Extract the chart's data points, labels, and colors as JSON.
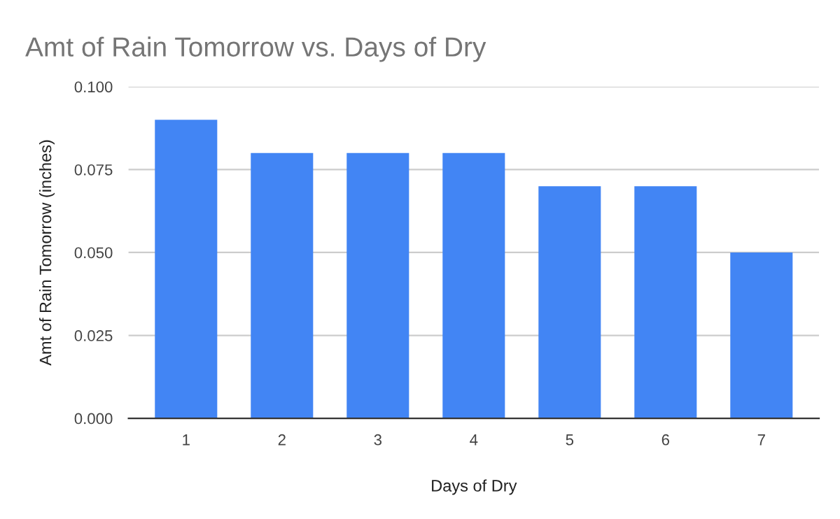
{
  "chart_data": {
    "type": "bar",
    "title": "Amt of Rain Tomorrow vs. Days of Dry",
    "xlabel": "Days of Dry",
    "ylabel": "Amt of Rain Tomorrow (inches)",
    "categories": [
      "1",
      "2",
      "3",
      "4",
      "5",
      "6",
      "7"
    ],
    "values": [
      0.09,
      0.08,
      0.08,
      0.08,
      0.07,
      0.07,
      0.05
    ],
    "color": "#4285f4",
    "ylim": [
      0,
      0.1
    ],
    "yticks": [
      {
        "value": 0,
        "label": "0.000"
      },
      {
        "value": 0.025,
        "label": "0.025"
      },
      {
        "value": 0.05,
        "label": "0.050"
      },
      {
        "value": 0.075,
        "label": "0.075"
      },
      {
        "value": 0.1,
        "label": "0.100"
      }
    ],
    "grid": "y"
  }
}
